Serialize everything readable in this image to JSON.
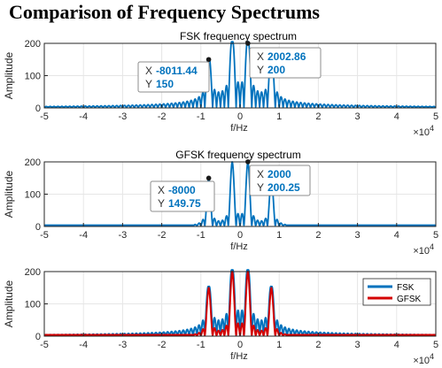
{
  "page": {
    "title": "Comparison of Frequency Spectrums"
  },
  "colors": {
    "fsk": "#0072BD",
    "gfsk": "#D40000",
    "axis": "#262626",
    "grid": "#e6e6e6",
    "datatip_bg": "#ffffff",
    "datatip_value": "#0072BD"
  },
  "chart_data": [
    {
      "type": "line",
      "title": "FSK frequency spectrum",
      "xlabel": "f/Hz",
      "ylabel": "Amplitude",
      "x_exponent_label": "×10",
      "x_exponent_power": "4",
      "xlim": [
        -50000,
        50000
      ],
      "ylim": [
        0,
        200
      ],
      "x_ticks": [
        -5,
        -4,
        -3,
        -2,
        -1,
        0,
        1,
        2,
        3,
        4,
        5
      ],
      "x_tick_labels": [
        "-5",
        "-4",
        "-3",
        "-2",
        "-1",
        "0",
        "1",
        "2",
        "3",
        "4",
        "5"
      ],
      "y_ticks": [
        0,
        100,
        200
      ],
      "y_tick_labels": [
        "0",
        "100",
        "200"
      ],
      "grid": true,
      "series": [
        {
          "color": "#0072BD",
          "peaks": [
            [
              -8000,
              150
            ],
            [
              -2000,
              200
            ],
            [
              2000,
              200
            ],
            [
              8000,
              150
            ]
          ]
        }
      ],
      "datatips": [
        {
          "x": -8011.44,
          "y": 150,
          "x_label": "X",
          "x_value": "-8011.44",
          "y_label": "Y",
          "y_value": "150"
        },
        {
          "x": 2002.86,
          "y": 200,
          "x_label": "X",
          "x_value": "2002.86",
          "y_label": "Y",
          "y_value": "200"
        }
      ]
    },
    {
      "type": "line",
      "title": "GFSK frequency spectrum",
      "xlabel": "f/Hz",
      "ylabel": "Amplitude",
      "x_exponent_label": "×10",
      "x_exponent_power": "4",
      "xlim": [
        -50000,
        50000
      ],
      "ylim": [
        0,
        200
      ],
      "x_ticks": [
        -5,
        -4,
        -3,
        -2,
        -1,
        0,
        1,
        2,
        3,
        4,
        5
      ],
      "x_tick_labels": [
        "-5",
        "-4",
        "-3",
        "-2",
        "-1",
        "0",
        "1",
        "2",
        "3",
        "4",
        "5"
      ],
      "y_ticks": [
        0,
        100,
        200
      ],
      "y_tick_labels": [
        "0",
        "100",
        "200"
      ],
      "grid": true,
      "series": [
        {
          "color": "#0072BD",
          "peaks": [
            [
              -8000,
              149.75
            ],
            [
              -2000,
              200.25
            ],
            [
              2000,
              200.25
            ],
            [
              8000,
              149.75
            ]
          ]
        }
      ],
      "datatips": [
        {
          "x": -8000,
          "y": 149.75,
          "x_label": "X",
          "x_value": "-8000",
          "y_label": "Y",
          "y_value": "149.75"
        },
        {
          "x": 2000,
          "y": 200.25,
          "x_label": "X",
          "x_value": "2000",
          "y_label": "Y",
          "y_value": "200.25"
        }
      ]
    },
    {
      "type": "line",
      "title": "",
      "xlabel": "f/Hz",
      "ylabel": "Amplitude",
      "x_exponent_label": "×10",
      "x_exponent_power": "4",
      "xlim": [
        -50000,
        50000
      ],
      "ylim": [
        0,
        200
      ],
      "x_ticks": [
        -5,
        -4,
        -3,
        -2,
        -1,
        0,
        1,
        2,
        3,
        4,
        5
      ],
      "x_tick_labels": [
        "-5",
        "-4",
        "-3",
        "-2",
        "-1",
        "0",
        "1",
        "2",
        "3",
        "4",
        "5"
      ],
      "y_ticks": [
        0,
        100,
        200
      ],
      "y_tick_labels": [
        "0",
        "100",
        "200"
      ],
      "grid": true,
      "legend_position": "top-right",
      "series": [
        {
          "name": "FSK",
          "color": "#0072BD",
          "peaks": [
            [
              -8000,
              150
            ],
            [
              -2000,
              200
            ],
            [
              2000,
              200
            ],
            [
              8000,
              150
            ]
          ]
        },
        {
          "name": "GFSK",
          "color": "#D40000",
          "peaks": [
            [
              -8000,
              149.75
            ],
            [
              -2000,
              200.25
            ],
            [
              2000,
              200.25
            ],
            [
              8000,
              149.75
            ]
          ]
        }
      ],
      "datatips": []
    }
  ]
}
